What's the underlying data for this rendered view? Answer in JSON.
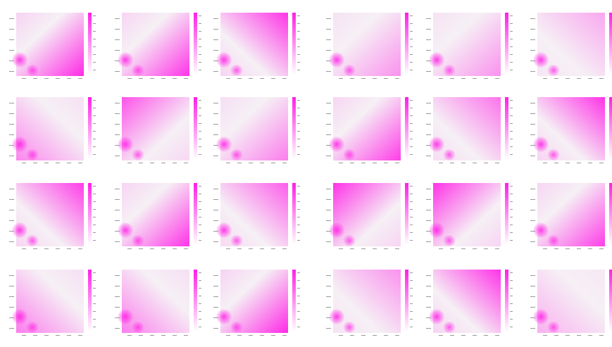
{
  "colors": {
    "low": "#ffffff",
    "high": "#ff1fe6",
    "mid": "#f3eaf2"
  },
  "chart_data": [
    {
      "type": "heatmap",
      "title": "",
      "grid": false,
      "corner": "bottom-right",
      "intensity": 0.95
    },
    {
      "type": "heatmap",
      "title": "",
      "grid": false,
      "corner": "bottom-right",
      "intensity": 0.9
    },
    {
      "type": "heatmap",
      "title": "",
      "grid": false,
      "corner": "top-right",
      "intensity": 0.9
    },
    {
      "type": "heatmap",
      "title": "",
      "grid": false,
      "corner": "bottom-right",
      "intensity": 0.45
    },
    {
      "type": "heatmap",
      "title": "",
      "grid": false,
      "corner": "bottom-right",
      "intensity": 0.45
    },
    {
      "type": "heatmap",
      "title": "",
      "grid": false,
      "corner": "top-right",
      "intensity": 0.35
    },
    {
      "type": "heatmap",
      "title": "",
      "grid": false,
      "corner": "bottom-left",
      "intensity": 0.5
    },
    {
      "type": "heatmap",
      "title": "",
      "grid": false,
      "corner": "top-left",
      "intensity": 0.75
    },
    {
      "type": "heatmap",
      "title": "",
      "grid": false,
      "corner": "bottom-right",
      "intensity": 0.55
    },
    {
      "type": "heatmap",
      "title": "",
      "grid": false,
      "corner": "bottom-right",
      "intensity": 0.85
    },
    {
      "type": "heatmap",
      "title": "",
      "grid": false,
      "corner": "top-right",
      "intensity": 0.6
    },
    {
      "type": "heatmap",
      "title": "",
      "grid": false,
      "corner": "top-right",
      "intensity": 0.9
    },
    {
      "type": "heatmap",
      "title": "",
      "grid": false,
      "corner": "top-right",
      "intensity": 0.85
    },
    {
      "type": "heatmap",
      "title": "",
      "grid": false,
      "corner": "bottom-right",
      "intensity": 0.9
    },
    {
      "type": "heatmap",
      "title": "",
      "grid": false,
      "corner": "top-right",
      "intensity": 0.7
    },
    {
      "type": "heatmap",
      "title": "",
      "grid": false,
      "corner": "top-left",
      "intensity": 0.9
    },
    {
      "type": "heatmap",
      "title": "",
      "grid": false,
      "corner": "top-left",
      "intensity": 0.9
    },
    {
      "type": "heatmap",
      "title": "",
      "grid": false,
      "corner": "bottom-right",
      "intensity": 0.85
    },
    {
      "type": "heatmap",
      "title": "",
      "grid": false,
      "corner": "bottom-left",
      "intensity": 0.55
    },
    {
      "type": "heatmap",
      "title": "",
      "grid": false,
      "corner": "bottom-left",
      "intensity": 0.55
    },
    {
      "type": "heatmap",
      "title": "",
      "grid": false,
      "corner": "bottom-right",
      "intensity": 0.95
    },
    {
      "type": "heatmap",
      "title": "",
      "grid": false,
      "corner": "top-right",
      "intensity": 0.45
    },
    {
      "type": "heatmap",
      "title": "",
      "grid": false,
      "corner": "top-right",
      "intensity": 0.9
    },
    {
      "type": "heatmap",
      "title": "",
      "grid": false,
      "corner": "bottom-left",
      "intensity": 0.3
    }
  ]
}
